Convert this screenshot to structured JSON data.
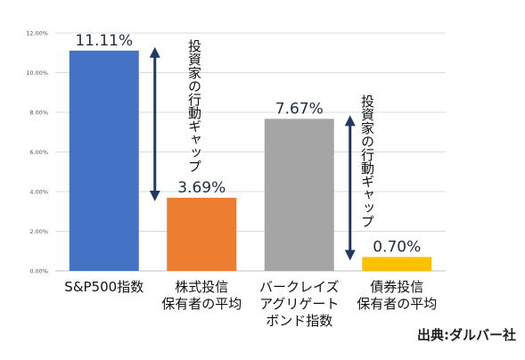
{
  "chart_data": {
    "type": "bar",
    "categories": [
      "S&P500指数",
      "株式投信\n保有者の平均",
      "バークレイズ\nアグリゲート\nボンド指数",
      "債券投信\n保有者の平均"
    ],
    "values": [
      11.11,
      3.69,
      7.67,
      0.7
    ],
    "value_labels": [
      "11.11%",
      "3.69%",
      "7.67%",
      "0.70%"
    ],
    "colors": [
      "#4472c4",
      "#ed7d31",
      "#a5a5a5",
      "#ffc000"
    ],
    "yticks": [
      "0.00%",
      "2.00%",
      "4.00%",
      "6.00%",
      "8.00%",
      "10.00%",
      "12.00%"
    ],
    "ylim": [
      0,
      12
    ],
    "grid": true,
    "annotations": [
      "投資家の行動ギャップ",
      "投資家の行動ギャップ"
    ]
  },
  "source_text": "出典:ダルバー社"
}
